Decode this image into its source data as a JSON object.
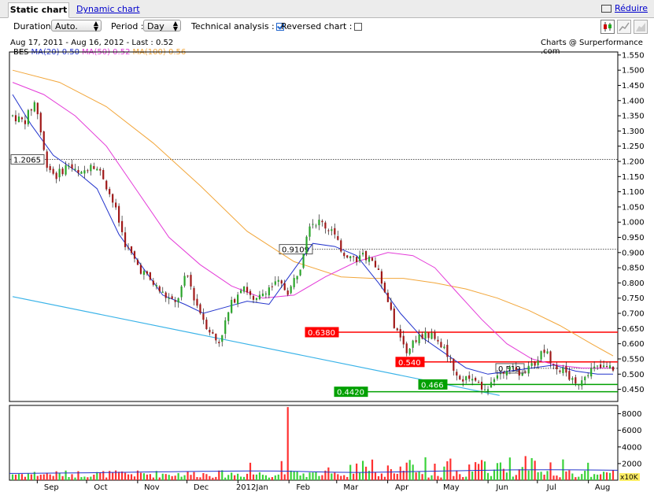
{
  "tabs": {
    "static": "Static chart",
    "dynamic": "Dynamic chart",
    "reduce": "Réduire"
  },
  "toolbar": {
    "duration_label": "Duration :",
    "duration_value": "Auto.",
    "period_label": "Period :",
    "period_value": "Day",
    "technical_label": "Technical analysis :",
    "technical_checked": true,
    "reversed_label": "Reversed chart :",
    "reversed_checked": false
  },
  "chart_type_icons": [
    "candlestick-icon",
    "line-chart-icon",
    "mountain-chart-icon"
  ],
  "info": {
    "range": "Aug 17, 2011 - Aug 16, 2012 - Last : 0.52",
    "source": "Charts @ Surperformance .com"
  },
  "legend": {
    "ticker": "BES",
    "ma20": "MA(20) 0.50",
    "ma50": "MA(50) 0.52",
    "ma100": "MA(100) 0.56"
  },
  "colors": {
    "up": "#2aa52a",
    "down": "#a01818",
    "ma20": "#2233cc",
    "ma50": "#e43bd8",
    "ma100": "#f2a63a",
    "trend": "#3ab3e8",
    "resistance": "#ff0000",
    "support": "#00a000",
    "vol_up": "#3ad23a",
    "vol_down": "#ff3030",
    "vol_ma": "#2233cc"
  },
  "chart_data": {
    "type": "candlestick",
    "y_range": [
      0.41,
      1.56
    ],
    "y_ticks": [
      "1.550",
      "1.500",
      "1.450",
      "1.400",
      "1.350",
      "1.300",
      "1.250",
      "1.200",
      "1.150",
      "1.100",
      "1.050",
      "1.000",
      "0.950",
      "0.900",
      "0.850",
      "0.800",
      "0.750",
      "0.700",
      "0.650",
      "0.600",
      "0.550",
      "0.500",
      "0.450"
    ],
    "x_labels": [
      "Sep",
      "Oct",
      "Nov",
      "Dec",
      "2012Jan",
      "Feb",
      "Mar",
      "Apr",
      "May",
      "Jun",
      "Jul",
      "Aug"
    ],
    "price_key_points": [
      [
        "2011-08-17",
        1.35
      ],
      [
        "2011-08-24",
        1.33
      ],
      [
        "2011-08-31",
        1.4
      ],
      [
        "2011-09-06",
        1.2
      ],
      [
        "2011-09-12",
        1.15
      ],
      [
        "2011-09-20",
        1.19
      ],
      [
        "2011-09-27",
        1.15
      ],
      [
        "2011-10-04",
        1.2
      ],
      [
        "2011-10-11",
        1.15
      ],
      [
        "2011-10-18",
        1.05
      ],
      [
        "2011-10-25",
        0.92
      ],
      [
        "2011-11-02",
        0.85
      ],
      [
        "2011-11-10",
        0.8
      ],
      [
        "2011-11-17",
        0.76
      ],
      [
        "2011-11-24",
        0.73
      ],
      [
        "2011-12-01",
        0.83
      ],
      [
        "2011-12-06",
        0.74
      ],
      [
        "2011-12-13",
        0.66
      ],
      [
        "2011-12-20",
        0.6
      ],
      [
        "2011-12-28",
        0.73
      ],
      [
        "2012-01-04",
        0.8
      ],
      [
        "2012-01-11",
        0.73
      ],
      [
        "2012-01-18",
        0.78
      ],
      [
        "2012-01-25",
        0.8
      ],
      [
        "2012-02-01",
        0.77
      ],
      [
        "2012-02-08",
        0.86
      ],
      [
        "2012-02-13",
        1.0
      ],
      [
        "2012-02-20",
        1.0
      ],
      [
        "2012-02-27",
        0.97
      ],
      [
        "2012-03-05",
        0.9
      ],
      [
        "2012-03-12",
        0.88
      ],
      [
        "2012-03-19",
        0.89
      ],
      [
        "2012-03-26",
        0.84
      ],
      [
        "2012-04-02",
        0.73
      ],
      [
        "2012-04-06",
        0.64
      ],
      [
        "2012-04-12",
        0.58
      ],
      [
        "2012-04-19",
        0.62
      ],
      [
        "2012-04-26",
        0.63
      ],
      [
        "2012-05-03",
        0.6
      ],
      [
        "2012-05-08",
        0.55
      ],
      [
        "2012-05-15",
        0.48
      ],
      [
        "2012-05-22",
        0.5
      ],
      [
        "2012-05-29",
        0.44
      ],
      [
        "2012-06-05",
        0.5
      ],
      [
        "2012-06-12",
        0.52
      ],
      [
        "2012-06-20",
        0.51
      ],
      [
        "2012-06-27",
        0.52
      ],
      [
        "2012-07-05",
        0.58
      ],
      [
        "2012-07-12",
        0.53
      ],
      [
        "2012-07-19",
        0.5
      ],
      [
        "2012-07-24",
        0.46
      ],
      [
        "2012-07-31",
        0.51
      ],
      [
        "2012-08-07",
        0.52
      ],
      [
        "2012-08-16",
        0.52
      ]
    ],
    "ma20": [
      [
        0,
        1.42
      ],
      [
        6,
        1.32
      ],
      [
        13,
        1.22
      ],
      [
        20,
        1.17
      ],
      [
        27,
        1.11
      ],
      [
        34,
        0.96
      ],
      [
        41,
        0.86
      ],
      [
        48,
        0.76
      ],
      [
        55,
        0.73
      ],
      [
        61,
        0.7
      ],
      [
        68,
        0.72
      ],
      [
        75,
        0.74
      ],
      [
        82,
        0.73
      ],
      [
        89,
        0.83
      ],
      [
        96,
        0.93
      ],
      [
        103,
        0.92
      ],
      [
        110,
        0.89
      ],
      [
        117,
        0.8
      ],
      [
        124,
        0.7
      ],
      [
        131,
        0.62
      ],
      [
        138,
        0.57
      ],
      [
        145,
        0.52
      ],
      [
        152,
        0.5
      ],
      [
        159,
        0.51
      ],
      [
        166,
        0.52
      ],
      [
        173,
        0.53
      ],
      [
        180,
        0.51
      ],
      [
        187,
        0.5
      ],
      [
        192,
        0.5
      ]
    ],
    "ma50": [
      [
        0,
        1.46
      ],
      [
        10,
        1.42
      ],
      [
        20,
        1.35
      ],
      [
        30,
        1.25
      ],
      [
        40,
        1.1
      ],
      [
        50,
        0.95
      ],
      [
        60,
        0.86
      ],
      [
        70,
        0.79
      ],
      [
        80,
        0.75
      ],
      [
        90,
        0.76
      ],
      [
        100,
        0.82
      ],
      [
        110,
        0.87
      ],
      [
        120,
        0.9
      ],
      [
        128,
        0.89
      ],
      [
        135,
        0.85
      ],
      [
        142,
        0.77
      ],
      [
        150,
        0.68
      ],
      [
        158,
        0.6
      ],
      [
        166,
        0.55
      ],
      [
        174,
        0.53
      ],
      [
        182,
        0.52
      ],
      [
        192,
        0.52
      ]
    ],
    "ma100": [
      [
        0,
        1.5
      ],
      [
        15,
        1.46
      ],
      [
        30,
        1.38
      ],
      [
        45,
        1.26
      ],
      [
        60,
        1.12
      ],
      [
        75,
        0.97
      ],
      [
        90,
        0.87
      ],
      [
        105,
        0.82
      ],
      [
        115,
        0.815
      ],
      [
        125,
        0.815
      ],
      [
        135,
        0.8
      ],
      [
        145,
        0.78
      ],
      [
        155,
        0.75
      ],
      [
        165,
        0.71
      ],
      [
        175,
        0.66
      ],
      [
        185,
        0.6
      ],
      [
        192,
        0.56
      ]
    ],
    "trendline": {
      "from": [
        "2011-08-17",
        0.755
      ],
      "to": [
        "2012-06-08",
        0.43
      ]
    },
    "horizontal_levels": [
      {
        "value": 1.2065,
        "label": "1.2065",
        "style": "dotted"
      },
      {
        "value": 0.9109,
        "label": "0.9109",
        "style": "dotted"
      },
      {
        "value": 0.638,
        "label": "0.6380",
        "style": "resistance"
      },
      {
        "value": 0.54,
        "label": "0.540",
        "style": "resistance"
      },
      {
        "value": 0.519,
        "label": "0.519",
        "style": "dotted"
      },
      {
        "value": 0.466,
        "label": "0.466",
        "style": "support"
      },
      {
        "value": 0.442,
        "label": "0.4420",
        "style": "support"
      }
    ],
    "volume": {
      "unit": "x10K",
      "y_range": [
        0,
        9000
      ],
      "y_ticks": [
        "8000",
        "6000",
        "4000",
        "2000"
      ],
      "spikes": [
        [
          88,
          8800
        ],
        [
          76,
          2100
        ],
        [
          86,
          2300
        ],
        [
          140,
          2600
        ],
        [
          148,
          2700
        ],
        [
          164,
          2900
        ],
        [
          176,
          2500
        ],
        [
          184,
          2100
        ],
        [
          120,
          2200
        ],
        [
          110,
          2000
        ]
      ],
      "ma_level": 1100
    }
  }
}
